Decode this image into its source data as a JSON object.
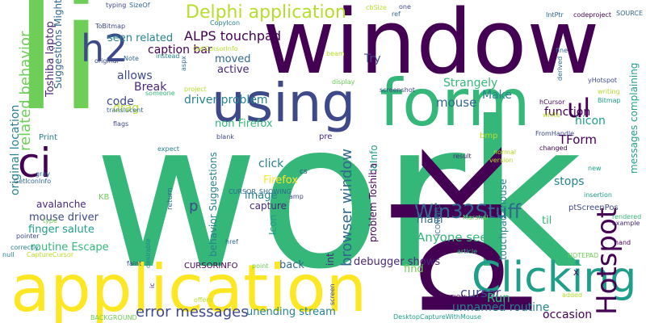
{
  "palette": [
    "#440154",
    "#482878",
    "#3e4989",
    "#31688e",
    "#26828e",
    "#1f9e89",
    "#35b779",
    "#6ece58",
    "#b5de2b",
    "#fde725"
  ],
  "words": [
    {
      "text": "work",
      "color": "#35b779"
    },
    {
      "text": "window",
      "color": "#440154"
    },
    {
      "text": "li",
      "color": "#6ece58"
    },
    {
      "text": "application",
      "color": "#fde725"
    },
    {
      "text": "pk",
      "color": "#440154"
    },
    {
      "text": "form",
      "color": "#35b779"
    },
    {
      "text": "using",
      "color": "#3e4989"
    },
    {
      "text": "h2",
      "color": "#3e4989"
    },
    {
      "text": "Clicking",
      "color": "#1f9e89"
    },
    {
      "text": "ci",
      "color": "#440154"
    },
    {
      "text": "ul",
      "color": "#440154"
    },
    {
      "text": "Delphi application",
      "color": "#b5de2b"
    },
    {
      "text": "Hotspot",
      "color": "#440154"
    },
    {
      "text": "Win32Stuff",
      "color": "#31688e"
    },
    {
      "text": "browser window",
      "color": "#31688e"
    },
    {
      "text": "related behavior",
      "color": "#6ece58"
    },
    {
      "text": "error messages",
      "color": "#3e4989"
    },
    {
      "text": "driver problem",
      "color": "#26828e"
    },
    {
      "text": "ALPS touchpad",
      "color": "#440154"
    },
    {
      "text": "caption bar",
      "color": "#440154"
    },
    {
      "text": "seen related",
      "color": "#26828e"
    },
    {
      "text": "mouse",
      "color": "#31688e"
    },
    {
      "text": "TForm",
      "color": "#440154"
    },
    {
      "text": "function",
      "color": "#440154"
    },
    {
      "text": "hicon",
      "color": "#1f9e89"
    },
    {
      "text": "cursor",
      "color": "#3e4989"
    },
    {
      "text": "Run",
      "color": "#35b779"
    },
    {
      "text": "stops",
      "color": "#26828e"
    },
    {
      "text": "unnamed routine",
      "color": "#26828e"
    },
    {
      "text": "occasion",
      "color": "#440154"
    },
    {
      "text": "Anyone seen",
      "color": "#35b779"
    },
    {
      "text": "debugger shows",
      "color": "#482878"
    },
    {
      "text": "unending stream",
      "color": "#26828e"
    },
    {
      "text": "routine Escape",
      "color": "#35b779"
    },
    {
      "text": "finger salute",
      "color": "#1f9e89"
    },
    {
      "text": "mouse driver",
      "color": "#3e4989"
    },
    {
      "text": "avalanche",
      "color": "#482878"
    },
    {
      "text": "original location",
      "color": "#26828e"
    },
    {
      "text": "Toshiba laptop",
      "color": "#482878"
    },
    {
      "text": "Suggestions Might",
      "color": "#31688e"
    },
    {
      "text": "code",
      "color": "#3e4989"
    },
    {
      "text": "drag",
      "color": "#b5de2b"
    },
    {
      "text": "allows",
      "color": "#3e4989"
    },
    {
      "text": "Break",
      "color": "#482878"
    },
    {
      "text": "moved",
      "color": "#31688e"
    },
    {
      "text": "active",
      "color": "#482878"
    },
    {
      "text": "Try",
      "color": "#3e4989"
    },
    {
      "text": "Make",
      "color": "#26828e"
    },
    {
      "text": "Strangely",
      "color": "#35b779"
    },
    {
      "text": "non Firefox",
      "color": "#35b779"
    },
    {
      "text": "click",
      "color": "#26828e"
    },
    {
      "text": "Firefox",
      "color": "#fde725"
    },
    {
      "text": "image",
      "color": "#26828e"
    },
    {
      "text": "capture",
      "color": "#482878"
    },
    {
      "text": "behavior Suggestions",
      "color": "#26828e"
    },
    {
      "text": "problem Toshiba",
      "color": "#440154"
    },
    {
      "text": "icInfo",
      "color": "#1f9e89"
    },
    {
      "text": "touchpad mouse",
      "color": "#26828e"
    },
    {
      "text": "messages complaining",
      "color": "#1f9e89"
    },
    {
      "text": "main",
      "color": "#31688e"
    },
    {
      "text": "find",
      "color": "#6ece58"
    },
    {
      "text": "til",
      "color": "#35b779"
    },
    {
      "text": "back",
      "color": "#31688e"
    },
    {
      "text": "int",
      "color": "#482878"
    },
    {
      "text": "p",
      "color": "#3e4989"
    },
    {
      "text": "Icon",
      "color": "#1f9e89"
    },
    {
      "text": "ptScreenPos",
      "color": "#3e4989"
    },
    {
      "text": "CURSORINFO",
      "color": "#440154"
    },
    {
      "text": "pre",
      "color": "#482878"
    },
    {
      "text": "bmp",
      "color": "#b5de2b"
    },
    {
      "text": "Print",
      "color": "#26828e"
    },
    {
      "text": "GetIconInfo",
      "color": "#31688e"
    },
    {
      "text": "blank",
      "color": "#3e4989"
    },
    {
      "text": "cs",
      "color": "#3e4989"
    },
    {
      "text": "KB",
      "color": "#6ece58"
    },
    {
      "text": "return",
      "color": "#31688e"
    },
    {
      "text": "expect",
      "color": "#26828e"
    },
    {
      "text": "flags",
      "color": "#3e4989"
    },
    {
      "text": "translucent",
      "color": "#31688e"
    },
    {
      "text": "someone",
      "color": "#35b779"
    },
    {
      "text": "Note",
      "color": "#31688e"
    },
    {
      "text": "original",
      "color": "#3e4989"
    },
    {
      "text": "instead",
      "color": "#26828e"
    },
    {
      "text": "aspx",
      "color": "#31688e"
    },
    {
      "text": "project",
      "color": "#b5de2b"
    },
    {
      "text": "GetCursorInfo",
      "color": "#b5de2b"
    },
    {
      "text": "CopyIcon",
      "color": "#26828e"
    },
    {
      "text": "typing",
      "color": "#3e4989"
    },
    {
      "text": "SizeOf",
      "color": "#31688e"
    },
    {
      "text": "ToBitmap",
      "color": "#3e4989"
    },
    {
      "text": "cbSize",
      "color": "#b5de2b"
    },
    {
      "text": "ref",
      "color": "#31688e"
    },
    {
      "text": "one",
      "color": "#3e4989"
    },
    {
      "text": "IntPtr",
      "color": "#31688e"
    },
    {
      "text": "codeproject",
      "color": "#440154"
    },
    {
      "text": "SOURCE",
      "color": "#31688e"
    },
    {
      "text": "beam",
      "color": "#b5de2b"
    },
    {
      "text": "display",
      "color": "#6ece58"
    },
    {
      "text": "screenshot",
      "color": "#3e4989"
    },
    {
      "text": "fine",
      "color": "#31688e"
    },
    {
      "text": "derived",
      "color": "#31688e"
    },
    {
      "text": "yHotspot",
      "color": "#3e4989"
    },
    {
      "text": "writing",
      "color": "#b5de2b"
    },
    {
      "text": "Bitmap",
      "color": "#1f9e89"
    },
    {
      "text": "hCursor",
      "color": "#440154"
    },
    {
      "text": "white",
      "color": "#b5de2b"
    },
    {
      "text": "FromHandle",
      "color": "#3e4989"
    },
    {
      "text": "changed",
      "color": "#440154"
    },
    {
      "text": "normal",
      "color": "#b5de2b"
    },
    {
      "text": "version",
      "color": "#b5de2b"
    },
    {
      "text": "result",
      "color": "#482878"
    },
    {
      "text": "new",
      "color": "#1f9e89"
    },
    {
      "text": "insertion",
      "color": "#1f9e89"
    },
    {
      "text": "rendered",
      "color": "#35b779"
    },
    {
      "text": "example",
      "color": "#482878"
    },
    {
      "text": "hand",
      "color": "#440154"
    },
    {
      "text": "NOTEPAD",
      "color": "#6ece58"
    },
    {
      "text": "X",
      "color": "#440154"
    },
    {
      "text": "QUESTION",
      "color": "#440154"
    },
    {
      "text": "added",
      "color": "#b5de2b"
    },
    {
      "text": "article",
      "color": "#35b779"
    },
    {
      "text": "Marshal",
      "color": "#6ece58"
    },
    {
      "text": "ICONINFO",
      "color": "#31688e"
    },
    {
      "text": "static",
      "color": "#440154"
    },
    {
      "text": "amp",
      "color": "#3e4989"
    },
    {
      "text": "CURSOR_SHOWING",
      "color": "#31688e"
    },
    {
      "text": "href",
      "color": "#31688e"
    },
    {
      "text": "point",
      "color": "#6ece58"
    },
    {
      "text": "faint",
      "color": "#3e4989"
    },
    {
      "text": "desirable",
      "color": "#26828e"
    },
    {
      "text": "ic",
      "color": "#482878"
    },
    {
      "text": "offers",
      "color": "#b5de2b"
    },
    {
      "text": "screen",
      "color": "#3e4989"
    },
    {
      "text": "DesktopCaptureWithMouse",
      "color": "#1f9e89"
    },
    {
      "text": "BACKGROUND",
      "color": "#6ece58"
    },
    {
      "text": "correctly",
      "color": "#26828e"
    },
    {
      "text": "null",
      "color": "#26828e"
    },
    {
      "text": "CaptureCursor",
      "color": "#b5de2b"
    },
    {
      "text": "pointer",
      "color": "#3e4989"
    },
    {
      "text": "type",
      "color": "#6ece58"
    },
    {
      "text": "gray",
      "color": "#31688e"
    }
  ]
}
